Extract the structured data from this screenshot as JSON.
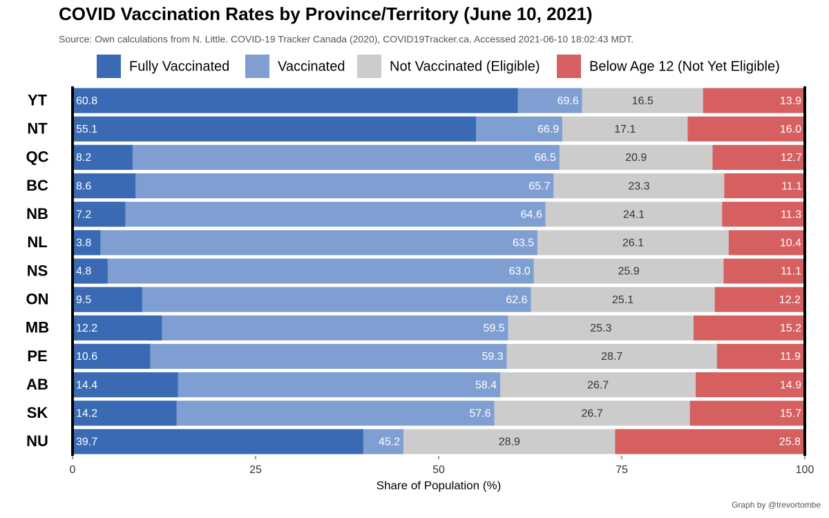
{
  "chart_data": {
    "type": "bar",
    "orientation": "horizontal",
    "title": "COVID Vaccination Rates by Province/Territory (June 10, 2021)",
    "subtitle": "Source: Own calculations from N. Little. COVID-19 Tracker Canada (2020), COVID19Tracker.ca. Accessed 2021-06-10 18:02:43 MDT.",
    "x_label": "Share of Population (%)",
    "caption": "Graph by @trevortombe",
    "categories": [
      "YT",
      "NT",
      "QC",
      "BC",
      "NB",
      "NL",
      "NS",
      "ON",
      "MB",
      "PE",
      "AB",
      "SK",
      "NU"
    ],
    "xlim": [
      0,
      100
    ],
    "xticks": [
      0,
      25,
      50,
      75,
      100
    ],
    "series": [
      {
        "name": "Fully Vaccinated",
        "color": "#3a6ab3",
        "values": [
          60.8,
          55.1,
          8.2,
          8.6,
          7.2,
          3.8,
          4.8,
          9.5,
          12.2,
          10.6,
          14.4,
          14.2,
          39.7
        ],
        "value_labels": [
          "60.8",
          "55.1",
          "8.2",
          "8.6",
          "7.2",
          "3.8",
          "4.8",
          "9.5",
          "12.2",
          "10.6",
          "14.4",
          "14.2",
          "39.7"
        ]
      },
      {
        "name": "Vaccinated",
        "color": "#7f9fd3",
        "values": [
          69.6,
          66.9,
          66.5,
          65.7,
          64.6,
          63.5,
          63.0,
          62.6,
          59.5,
          59.3,
          58.4,
          57.6,
          45.2
        ],
        "value_labels": [
          "69.6",
          "66.9",
          "66.5",
          "65.7",
          "64.6",
          "63.5",
          "63.0",
          "62.6",
          "59.5",
          "59.3",
          "58.4",
          "57.6",
          "45.2"
        ]
      },
      {
        "name": "Not Vaccinated (Eligible)",
        "color": "#cccccc",
        "values": [
          16.5,
          17.1,
          20.9,
          23.3,
          24.1,
          26.1,
          25.9,
          25.1,
          25.3,
          28.7,
          26.7,
          26.7,
          28.9
        ],
        "value_labels": [
          "16.5",
          "17.1",
          "20.9",
          "23.3",
          "24.1",
          "26.1",
          "25.9",
          "25.1",
          "25.3",
          "28.7",
          "26.7",
          "26.7",
          "28.9"
        ]
      },
      {
        "name": "Below Age 12 (Not Yet Eligible)",
        "color": "#d65f5f",
        "values": [
          13.9,
          16.0,
          12.7,
          11.1,
          11.3,
          10.4,
          11.1,
          12.2,
          15.2,
          11.9,
          14.9,
          15.7,
          25.8
        ],
        "value_labels": [
          "13.9",
          "16.0",
          "12.7",
          "11.1",
          "11.3",
          "10.4",
          "11.1",
          "12.2",
          "15.2",
          "11.9",
          "14.9",
          "15.7",
          "25.8"
        ]
      }
    ]
  }
}
